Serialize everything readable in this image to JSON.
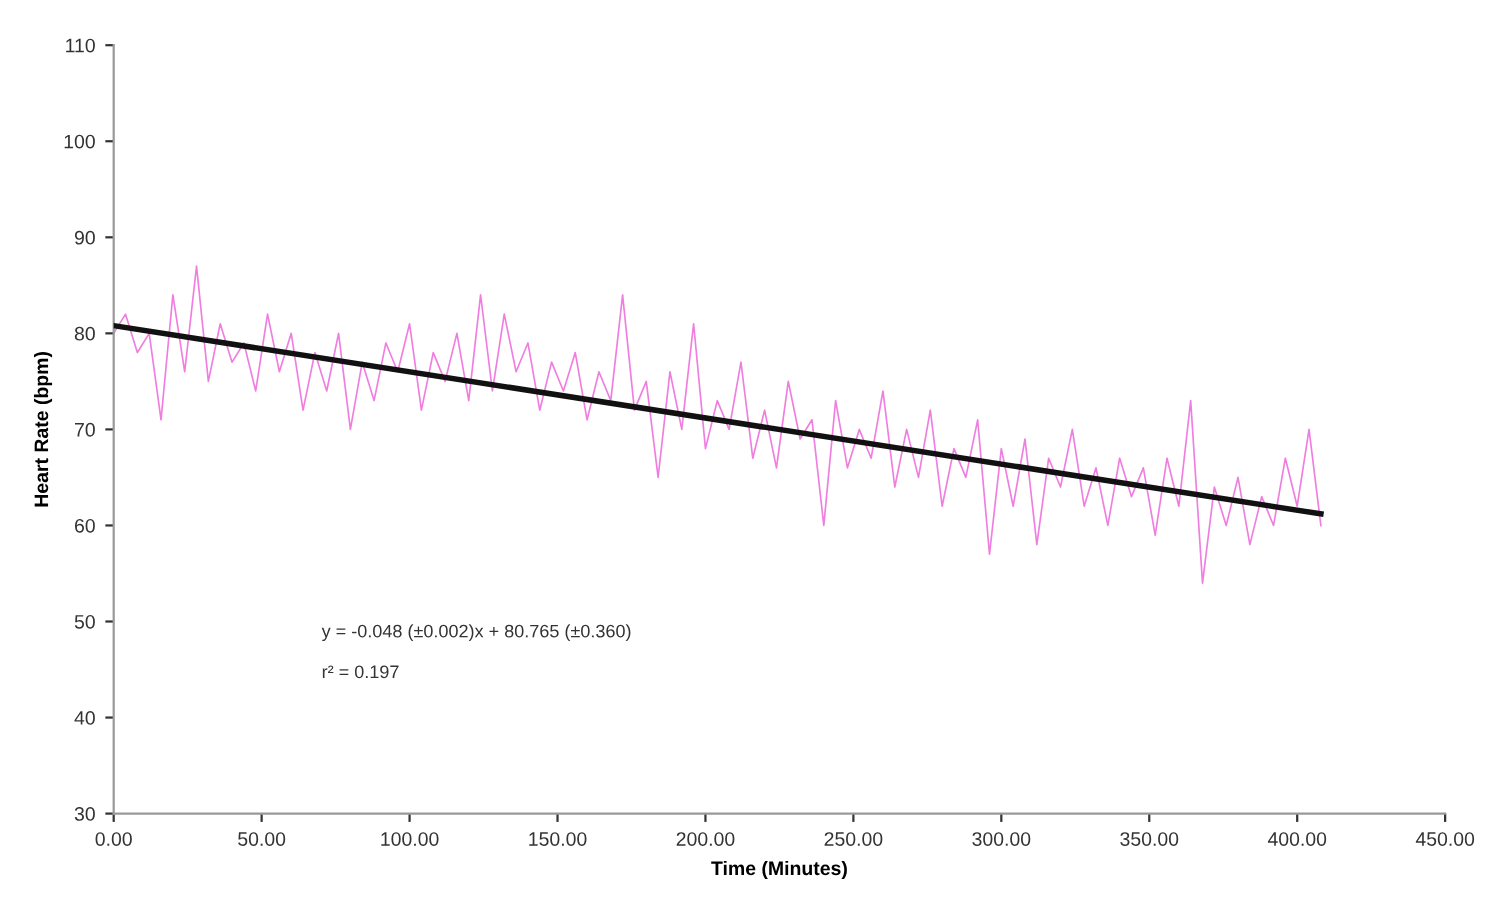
{
  "chart_data": {
    "type": "line",
    "xlabel": "Time (Minutes)",
    "ylabel": "Heart Rate (bpm)",
    "xlim": [
      0,
      450
    ],
    "ylim": [
      30,
      110
    ],
    "xticks": [
      {
        "value": 0,
        "label": "0.00"
      },
      {
        "value": 50,
        "label": "50.00"
      },
      {
        "value": 100,
        "label": "100.00"
      },
      {
        "value": 150,
        "label": "150.00"
      },
      {
        "value": 200,
        "label": "200.00"
      },
      {
        "value": 250,
        "label": "250.00"
      },
      {
        "value": 300,
        "label": "300.00"
      },
      {
        "value": 350,
        "label": "350.00"
      },
      {
        "value": 400,
        "label": "400.00"
      },
      {
        "value": 450,
        "label": "450.00"
      }
    ],
    "yticks": [
      30,
      40,
      50,
      60,
      70,
      80,
      90,
      100,
      110
    ],
    "grid": false,
    "legend": false,
    "series": [
      {
        "color": "#f07ee0",
        "x": [
          0,
          4,
          8,
          12,
          16,
          20,
          24,
          28,
          32,
          36,
          40,
          44,
          48,
          52,
          56,
          60,
          64,
          68,
          72,
          76,
          80,
          84,
          88,
          92,
          96,
          100,
          104,
          108,
          112,
          116,
          120,
          124,
          128,
          132,
          136,
          140,
          144,
          148,
          152,
          156,
          160,
          164,
          168,
          172,
          176,
          180,
          184,
          188,
          192,
          196,
          200,
          204,
          208,
          212,
          216,
          220,
          224,
          228,
          232,
          236,
          240,
          244,
          248,
          252,
          256,
          260,
          264,
          268,
          272,
          276,
          280,
          284,
          288,
          292,
          296,
          300,
          304,
          308,
          312,
          316,
          320,
          324,
          328,
          332,
          336,
          340,
          344,
          348,
          352,
          356,
          360,
          364,
          368,
          372,
          376,
          380,
          384,
          388,
          392,
          396,
          400,
          404,
          408
        ],
        "values": [
          80,
          82,
          78,
          80,
          71,
          84,
          76,
          87,
          75,
          81,
          77,
          79,
          74,
          82,
          76,
          80,
          72,
          78,
          74,
          80,
          70,
          77,
          73,
          79,
          76,
          81,
          72,
          78,
          75,
          80,
          73,
          84,
          74,
          82,
          76,
          79,
          72,
          77,
          74,
          78,
          71,
          76,
          73,
          84,
          72,
          75,
          65,
          76,
          70,
          81,
          68,
          73,
          70,
          77,
          67,
          72,
          66,
          75,
          69,
          71,
          60,
          73,
          66,
          70,
          67,
          74,
          64,
          70,
          65,
          72,
          62,
          68,
          65,
          71,
          57,
          68,
          62,
          69,
          58,
          67,
          64,
          70,
          62,
          66,
          60,
          67,
          63,
          66,
          59,
          67,
          62,
          73,
          54,
          64,
          60,
          65,
          58,
          63,
          60,
          67,
          62,
          70,
          60
        ]
      },
      {
        "type": "line",
        "color": "#111111",
        "x": [
          0,
          408
        ],
        "values": [
          80.8,
          61.2
        ]
      }
    ],
    "annotations": [
      "y = -0.048 (±0.002)x + 80.765 (±0.360)",
      "r² = 0.197"
    ]
  }
}
